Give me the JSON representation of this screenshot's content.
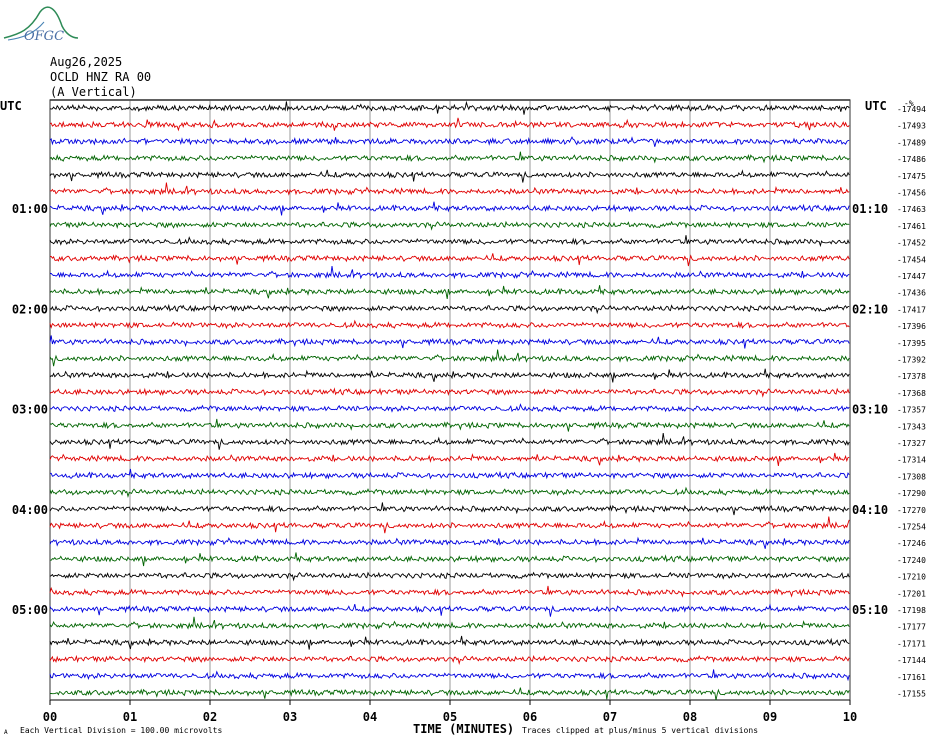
{
  "header": {
    "date": "Aug26,2025",
    "station": "OCLD HNZ RA 00",
    "component": "(A Vertical)",
    "logo_text": "OFGC"
  },
  "colors": [
    "#000000",
    "#e00000",
    "#0000e0",
    "#006400"
  ],
  "chart_data": {
    "type": "line",
    "title": "",
    "xlabel": "TIME (MINUTES)",
    "xlim": [
      0,
      10
    ],
    "x_ticks": [
      "00",
      "01",
      "02",
      "03",
      "04",
      "05",
      "06",
      "07",
      "08",
      "09",
      "10"
    ],
    "left_axis_label": "UTC",
    "right_axis_label": "UTC",
    "right_extra_label": "-%",
    "left_time_labels": [
      {
        "row": 6,
        "label": "01:00"
      },
      {
        "row": 12,
        "label": "02:00"
      },
      {
        "row": 18,
        "label": "03:00"
      },
      {
        "row": 24,
        "label": "04:00"
      },
      {
        "row": 30,
        "label": "05:00"
      }
    ],
    "right_time_labels": [
      {
        "row": 6,
        "label": "01:10"
      },
      {
        "row": 12,
        "label": "02:10"
      },
      {
        "row": 18,
        "label": "03:10"
      },
      {
        "row": 24,
        "label": "04:10"
      },
      {
        "row": 30,
        "label": "05:10"
      }
    ],
    "trace_offsets": [
      "-17494",
      "-17493",
      "-17489",
      "-17486",
      "-17475",
      "-17456",
      "-17463",
      "-17461",
      "-17452",
      "-17454",
      "-17447",
      "-17436",
      "-17417",
      "-17396",
      "-17395",
      "-17392",
      "-17378",
      "-17368",
      "-17357",
      "-17343",
      "-17327",
      "-17314",
      "-17308",
      "-17290",
      "-17270",
      "-17254",
      "-17246",
      "-17240",
      "-17210",
      "-17201",
      "-17198",
      "-17177",
      "-17171",
      "-17144",
      "-17161",
      "-17155"
    ],
    "footer_left": "Each Vertical Division =  100.00 microvolts",
    "footer_right": "Traces clipped at plus/minus 5 vertical divisions",
    "footer_mark": "A"
  }
}
